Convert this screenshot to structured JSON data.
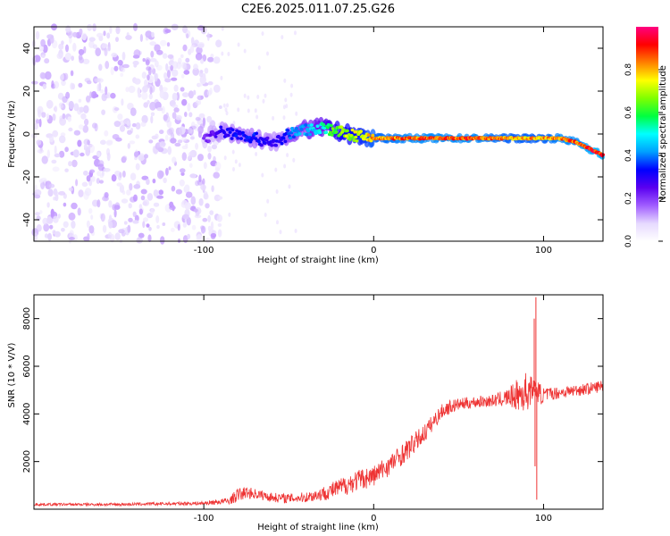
{
  "figure": {
    "title": "C2E6.2025.011.07.25.G26"
  },
  "chart_data": [
    {
      "type": "heatmap",
      "xlabel": "Height of straight line (km)",
      "ylabel": "Frequency (Hz)",
      "xlim": [
        -200,
        135
      ],
      "ylim": [
        -50,
        50
      ],
      "x_ticks": [
        -100,
        0,
        100
      ],
      "y_ticks": [
        -40,
        -20,
        0,
        20,
        40
      ],
      "colorbar": {
        "label": "Normalized spectral amplitude",
        "range": [
          0,
          1
        ],
        "ticks": [
          0.0,
          0.2,
          0.4,
          0.6,
          0.8
        ],
        "colormap": [
          "#ffffff",
          "#e6d9ff",
          "#a05cff",
          "#5a00f0",
          "#0000ff",
          "#00a0ff",
          "#00ffff",
          "#00ff40",
          "#80ff00",
          "#ffff00",
          "#ff8000",
          "#ff0000",
          "#ff0080"
        ]
      },
      "noise_region": {
        "x_range": [
          -200,
          -90
        ],
        "freq_range": [
          -50,
          50
        ],
        "amplitude": 0.1
      },
      "ridge": {
        "x": [
          -100,
          -90,
          -80,
          -70,
          -60,
          -55,
          -50,
          -40,
          -30,
          -20,
          -10,
          0,
          20,
          40,
          60,
          80,
          100,
          110,
          120,
          130,
          135
        ],
        "freq": [
          -2,
          1,
          0,
          -2,
          -4,
          -3,
          0,
          2,
          3,
          1,
          -1,
          -2,
          -2,
          -2,
          -2,
          -2,
          -2,
          -2,
          -4,
          -8,
          -10
        ],
        "amplitude": [
          0.2,
          0.3,
          0.35,
          0.35,
          0.3,
          0.3,
          0.4,
          0.45,
          0.55,
          0.7,
          0.75,
          0.85,
          0.9,
          0.9,
          0.9,
          0.85,
          0.85,
          0.9,
          0.9,
          0.95,
          0.95
        ]
      }
    },
    {
      "type": "line",
      "xlabel": "Height of straight line (km)",
      "ylabel": "SNR (10 * V/V)",
      "xlim": [
        -200,
        135
      ],
      "ylim": [
        0,
        9000
      ],
      "x_ticks": [
        -100,
        0,
        100
      ],
      "y_ticks": [
        2000,
        4000,
        6000,
        8000
      ],
      "series": [
        {
          "color": "#ee3333",
          "x": [
            -200,
            -150,
            -100,
            -85,
            -80,
            -75,
            -70,
            -60,
            -50,
            -40,
            -30,
            -20,
            -10,
            0,
            10,
            20,
            30,
            40,
            45,
            50,
            60,
            70,
            80,
            85,
            90,
            94,
            96,
            98,
            100,
            110,
            120,
            130,
            135
          ],
          "y": [
            200,
            200,
            250,
            350,
            600,
            700,
            650,
            500,
            450,
            500,
            650,
            900,
            1200,
            1400,
            1900,
            2500,
            3200,
            4100,
            4300,
            4400,
            4500,
            4550,
            4700,
            4800,
            4900,
            5100,
            5000,
            4800,
            4800,
            4900,
            5000,
            5100,
            5200
          ],
          "noise": [
            60,
            60,
            80,
            150,
            300,
            250,
            220,
            200,
            200,
            220,
            300,
            400,
            450,
            450,
            450,
            450,
            400,
            300,
            300,
            250,
            250,
            250,
            400,
            700,
            900,
            400,
            400,
            500,
            300,
            250,
            250,
            250,
            250
          ]
        }
      ],
      "spikes": [
        {
          "x": 95.5,
          "y": 8900
        },
        {
          "x": 96,
          "y": 400
        },
        {
          "x": 94.5,
          "y": 8000
        },
        {
          "x": 95,
          "y": 1800
        }
      ]
    }
  ]
}
